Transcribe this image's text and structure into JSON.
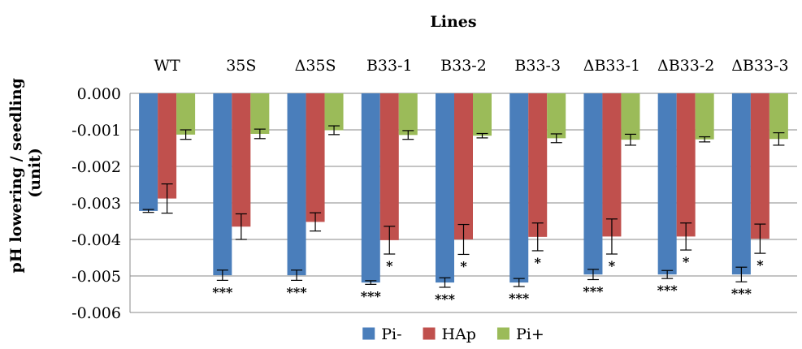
{
  "chart_data": {
    "type": "bar",
    "title": "Lines",
    "ylabel": "pH lowering / seedling (unit)",
    "xlabel": "",
    "categories": [
      "WT",
      "35S",
      "Δ35S",
      "B33-1",
      "B33-2",
      "B33-3",
      "ΔB33-1",
      "ΔB33-2",
      "ΔB33-3"
    ],
    "ylim": [
      -0.006,
      0.0
    ],
    "yticks": [
      0.0,
      -0.001,
      -0.002,
      -0.003,
      -0.004,
      -0.005,
      -0.006
    ],
    "ytick_labels": [
      "0.000",
      "-0.001",
      "-0.002",
      "-0.003",
      "-0.004",
      "-0.005",
      "-0.006"
    ],
    "x_axis_position": "top",
    "grid": "horizontal",
    "legend_position": "bottom",
    "series": [
      {
        "name": "Pi-",
        "color": "#4a7ebb",
        "values": [
          -0.00322,
          -0.00498,
          -0.00498,
          -0.00518,
          -0.00518,
          -0.00518,
          -0.00496,
          -0.00496,
          -0.00496
        ],
        "errors": [
          4e-05,
          0.00014,
          0.00014,
          5e-05,
          0.00013,
          0.00011,
          0.00014,
          0.00011,
          0.0002
        ],
        "annotations": [
          "",
          "***",
          "***",
          "***",
          "***",
          "***",
          "***",
          "***",
          "***"
        ]
      },
      {
        "name": "HAp",
        "color": "#c0504d",
        "values": [
          -0.00288,
          -0.00365,
          -0.00352,
          -0.00402,
          -0.004,
          -0.00393,
          -0.00392,
          -0.00392,
          -0.00398
        ],
        "errors": [
          0.0004,
          0.00035,
          0.00025,
          0.00038,
          0.00041,
          0.00038,
          0.00048,
          0.00037,
          0.0004
        ],
        "annotations": [
          "",
          "",
          "",
          "*",
          "*",
          "*",
          "*",
          "*",
          "*"
        ]
      },
      {
        "name": "Pi+",
        "color": "#9bbb59",
        "values": [
          -0.00113,
          -0.00111,
          -0.00101,
          -0.00114,
          -0.00116,
          -0.00123,
          -0.00127,
          -0.00126,
          -0.00125
        ],
        "errors": [
          0.00013,
          0.00013,
          0.00012,
          0.00012,
          6e-05,
          0.00012,
          0.00015,
          7e-05,
          0.00017
        ],
        "annotations": [
          "",
          "",
          "",
          "",
          "",
          "",
          "",
          "",
          ""
        ]
      }
    ]
  }
}
